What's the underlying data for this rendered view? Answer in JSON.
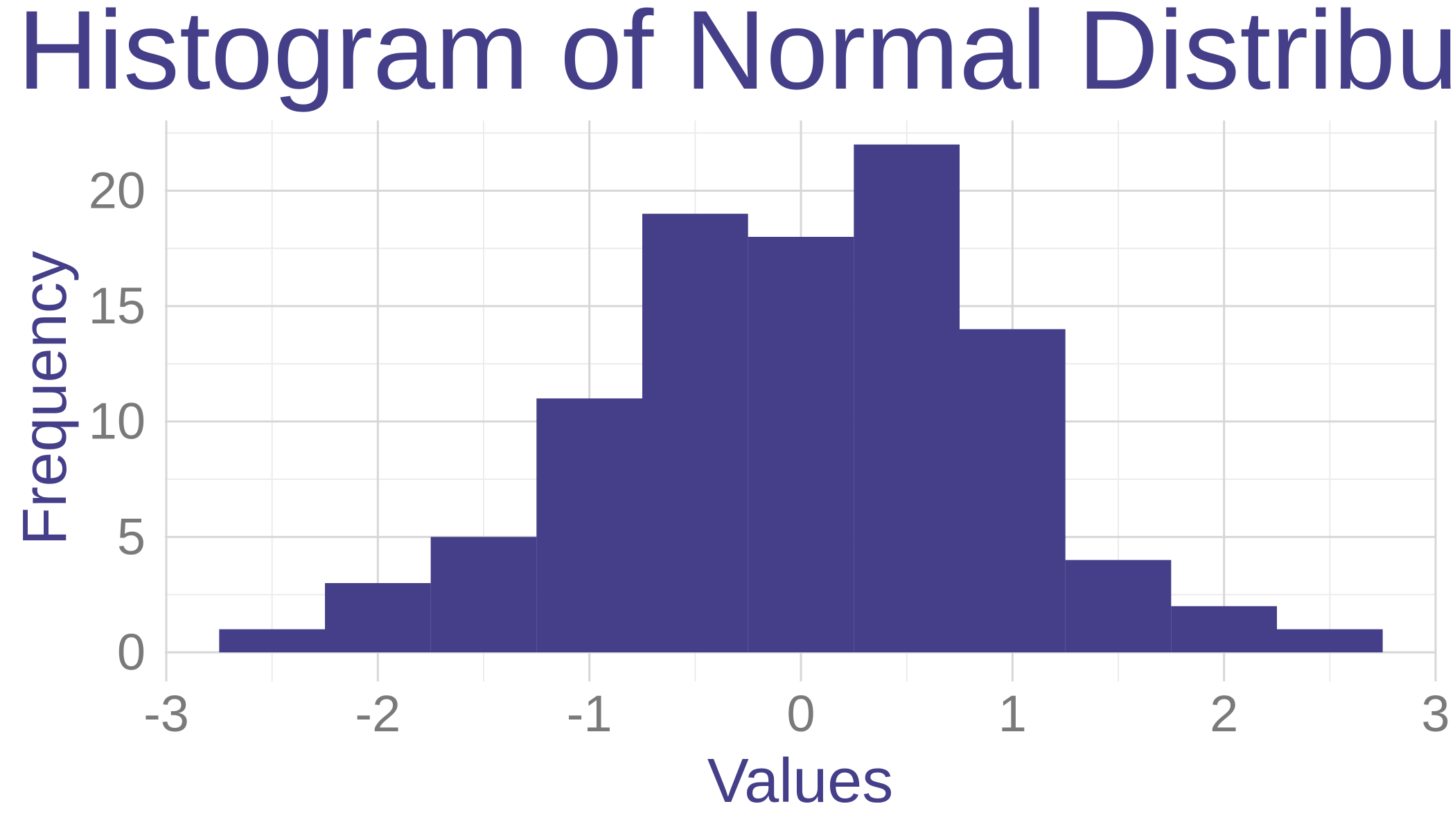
{
  "chart_data": {
    "type": "bar",
    "title": "Histogram of Normal Distribution S",
    "xlabel": "Values",
    "ylabel": "Frequency",
    "xlim": [
      -3,
      3
    ],
    "ylim": [
      0,
      22.5
    ],
    "x_ticks": [
      "-3",
      "-2",
      "-1",
      "0",
      "1",
      "2",
      "3"
    ],
    "y_ticks": [
      "0",
      "5",
      "10",
      "15",
      "20"
    ],
    "bin_width": 0.5,
    "bins": [
      {
        "start": -2.75,
        "end": -2.25,
        "count": 1
      },
      {
        "start": -2.25,
        "end": -1.75,
        "count": 3
      },
      {
        "start": -1.75,
        "end": -1.25,
        "count": 5
      },
      {
        "start": -1.25,
        "end": -0.75,
        "count": 11
      },
      {
        "start": -0.75,
        "end": -0.25,
        "count": 19
      },
      {
        "start": -0.25,
        "end": 0.25,
        "count": 18
      },
      {
        "start": 0.25,
        "end": 0.75,
        "count": 22
      },
      {
        "start": 0.75,
        "end": 1.25,
        "count": 14
      },
      {
        "start": 1.25,
        "end": 1.75,
        "count": 4
      },
      {
        "start": 1.75,
        "end": 2.25,
        "count": 2
      },
      {
        "start": 2.25,
        "end": 2.75,
        "count": 1
      }
    ],
    "grid": true,
    "legend": "none"
  },
  "colors": {
    "accent": "#443F88",
    "tick_text": "#7A7A7A",
    "grid_major": "#D7D7D7",
    "grid_minor": "#ECECEC",
    "background": "#FFFFFF"
  }
}
